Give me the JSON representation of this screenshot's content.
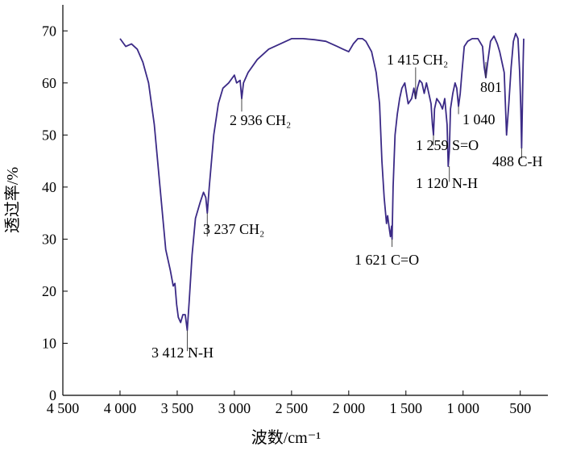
{
  "chart_data": {
    "type": "line",
    "xlabel": "波数/cm⁻¹",
    "ylabel": "透过率/%",
    "xlim": [
      4500,
      350
    ],
    "ylim": [
      0,
      75
    ],
    "x_ticks": [
      4500,
      4000,
      3500,
      3000,
      2500,
      2000,
      1500,
      1000,
      500
    ],
    "x_tick_labels": [
      "4 500",
      "4 000",
      "3 500",
      "3 000",
      "2 500",
      "2 000",
      "1 500",
      "1 000",
      "500"
    ],
    "y_ticks": [
      0,
      10,
      20,
      30,
      40,
      50,
      60,
      70
    ],
    "y_tick_labels": [
      "0",
      "10",
      "20",
      "30",
      "40",
      "50",
      "60",
      "70"
    ],
    "grid": false,
    "series": [
      {
        "color": "#3b2a86",
        "x": [
          4000,
          3950,
          3900,
          3850,
          3800,
          3750,
          3700,
          3650,
          3600,
          3560,
          3535,
          3520,
          3505,
          3490,
          3470,
          3450,
          3430,
          3412,
          3395,
          3370,
          3340,
          3300,
          3270,
          3250,
          3237,
          3220,
          3180,
          3140,
          3100,
          3050,
          3000,
          2980,
          2950,
          2936,
          2920,
          2880,
          2800,
          2700,
          2600,
          2500,
          2400,
          2300,
          2200,
          2100,
          2050,
          2000,
          1960,
          1920,
          1880,
          1850,
          1800,
          1760,
          1730,
          1710,
          1690,
          1670,
          1660,
          1645,
          1635,
          1625,
          1621,
          1612,
          1595,
          1575,
          1555,
          1535,
          1510,
          1480,
          1450,
          1430,
          1415,
          1400,
          1380,
          1360,
          1340,
          1320,
          1300,
          1280,
          1268,
          1259,
          1250,
          1230,
          1200,
          1180,
          1160,
          1140,
          1130,
          1120,
          1110,
          1090,
          1070,
          1055,
          1040,
          1025,
          1010,
          990,
          960,
          920,
          870,
          830,
          815,
          801,
          785,
          760,
          730,
          700,
          680,
          660,
          640,
          628,
          620,
          600,
          580,
          560,
          540,
          520,
          505,
          495,
          488,
          482,
          475,
          470
        ],
        "y": [
          68.5,
          67.0,
          67.5,
          66.5,
          64.0,
          60.0,
          52.0,
          40.0,
          28.0,
          24.0,
          21.0,
          21.5,
          17.5,
          15.0,
          14.0,
          15.5,
          15.5,
          12.5,
          18.0,
          27.0,
          34.0,
          37.0,
          39.0,
          38.0,
          35.0,
          40.0,
          50.0,
          56.0,
          59.0,
          60.0,
          61.5,
          60.0,
          60.5,
          57.0,
          60.0,
          62.0,
          64.5,
          66.5,
          67.5,
          68.5,
          68.5,
          68.3,
          68.0,
          67.0,
          66.5,
          66.0,
          67.5,
          68.5,
          68.5,
          68.0,
          66.0,
          62.0,
          56.0,
          45.0,
          38.0,
          33.0,
          34.5,
          32.0,
          30.5,
          32.5,
          30.0,
          40.0,
          50.0,
          54.0,
          57.0,
          59.0,
          60.0,
          56.0,
          57.0,
          59.0,
          57.0,
          59.0,
          60.5,
          60.0,
          58.0,
          60.0,
          58.0,
          56.0,
          52.0,
          50.0,
          55.0,
          57.0,
          56.0,
          55.0,
          57.0,
          52.0,
          44.0,
          47.0,
          55.0,
          58.0,
          60.0,
          59.0,
          55.5,
          58.0,
          62.0,
          67.0,
          68.0,
          68.5,
          68.5,
          67.0,
          63.0,
          61.0,
          64.0,
          68.0,
          69.0,
          67.5,
          66.0,
          64.0,
          62.0,
          55.0,
          50.0,
          56.0,
          63.0,
          68.0,
          69.5,
          68.5,
          62.0,
          55.0,
          47.5,
          55.0,
          64.0,
          68.5
        ]
      }
    ],
    "annotations": [
      {
        "text": "3 412 N-H",
        "x": 3412,
        "y": 12.5
      },
      {
        "text": "3 237 CH₂",
        "x": 3237,
        "y": 35.0
      },
      {
        "text": "2 936 CH₂",
        "x": 2936,
        "y": 57.0
      },
      {
        "text": "1 621 C=O",
        "x": 1621,
        "y": 30.0
      },
      {
        "text": "1 415 CH₂",
        "x": 1415,
        "y": 57.0
      },
      {
        "text": "801",
        "x": 801,
        "y": 61.0
      },
      {
        "text": "1 040",
        "x": 1040,
        "y": 55.5
      },
      {
        "text": "1 259 S=O",
        "x": 1259,
        "y": 50.0
      },
      {
        "text": "1 120 N-H",
        "x": 1120,
        "y": 44.0
      },
      {
        "text": "488 C-H",
        "x": 488,
        "y": 47.5
      }
    ]
  }
}
